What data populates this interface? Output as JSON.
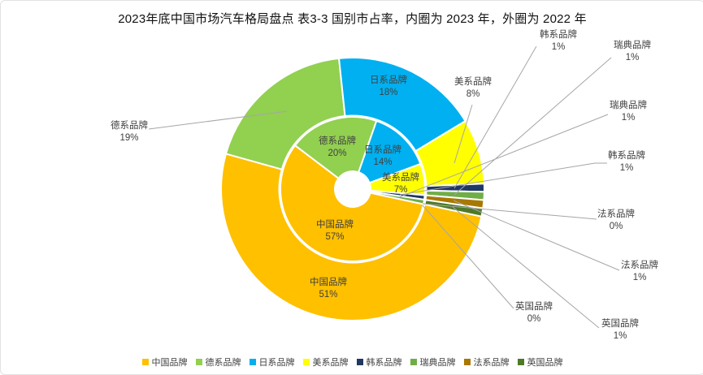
{
  "title": "2023年底中国市场汽车格局盘点 表3-3 国别市占率，内圈为 2023 年，外圈为 2022 年",
  "chart_data": {
    "type": "pie",
    "subtype": "nested-donut",
    "title": "国别市占率，内圈为 2023 年，外圈为 2022 年",
    "categories": [
      "中国品牌",
      "德系品牌",
      "日系品牌",
      "美系品牌",
      "韩系品牌",
      "瑞典品牌",
      "法系品牌",
      "英国品牌"
    ],
    "category_ids": [
      "china",
      "german",
      "japan",
      "usa",
      "korea",
      "sweden",
      "france",
      "uk"
    ],
    "colors": [
      "#FFC000",
      "#92D050",
      "#00B0F0",
      "#FFFF00",
      "#1F3864",
      "#70AD47",
      "#A87800",
      "#4E7A27"
    ],
    "series": [
      {
        "name": "2023年（内圈）",
        "ring": "inner",
        "values": [
          57,
          20,
          14,
          7,
          1,
          1,
          0,
          0
        ]
      },
      {
        "name": "2022年（外圈）",
        "ring": "outer",
        "values": [
          51,
          19,
          18,
          8,
          1,
          1,
          1,
          1
        ]
      }
    ],
    "start_angle_deg": 102,
    "legend_position": "bottom",
    "leader_line_color": "#A6A6A6"
  },
  "labels": {
    "inner_china": {
      "name": "中国品牌",
      "pct": "57%"
    },
    "inner_german": {
      "name": "德系品牌",
      "pct": "20%"
    },
    "inner_japan": {
      "name": "日系品牌",
      "pct": "14%"
    },
    "inner_america": {
      "name": "美系品牌",
      "pct": "7%"
    },
    "inner_korea": {
      "name": "韩系品牌",
      "pct": "1%"
    },
    "inner_sweden": {
      "name": "瑞典品牌",
      "pct": "1%"
    },
    "inner_france": {
      "name": "法系品牌",
      "pct": "0%"
    },
    "inner_uk": {
      "name": "英国品牌",
      "pct": "0%"
    },
    "outer_china": {
      "name": "中国品牌",
      "pct": "51%"
    },
    "outer_german": {
      "name": "德系品牌",
      "pct": "19%"
    },
    "outer_japan": {
      "name": "日系品牌",
      "pct": "18%"
    },
    "outer_america": {
      "name": "美系品牌",
      "pct": "8%"
    },
    "outer_korea": {
      "name": "韩系品牌",
      "pct": "1%"
    },
    "outer_sweden": {
      "name": "瑞典品牌",
      "pct": "1%"
    },
    "outer_france": {
      "name": "法系品牌",
      "pct": "1%"
    },
    "outer_uk": {
      "name": "英国品牌",
      "pct": "1%"
    }
  }
}
